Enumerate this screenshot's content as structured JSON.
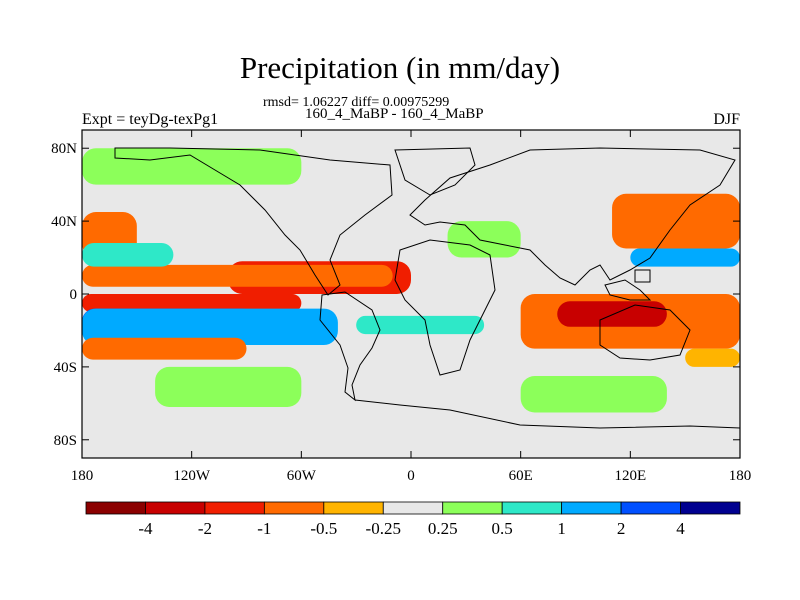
{
  "chart_data": {
    "type": "heatmap",
    "title": "Precipitation (in mm/day)",
    "stats": "rmsd= 1.06227 diff= 0.00975299",
    "experiment": "Expt = teyDg-texPg1",
    "cases": "160_4_MaBP - 160_4_MaBP",
    "season": "DJF",
    "x_ticks": [
      "180",
      "120W",
      "60W",
      "0",
      "60E",
      "120E",
      "180"
    ],
    "x_tick_values": [
      -180,
      -120,
      -60,
      0,
      60,
      120,
      180
    ],
    "y_ticks": [
      "80N",
      "40N",
      "0",
      "40S",
      "80S"
    ],
    "y_tick_values": [
      80,
      40,
      0,
      -40,
      -80
    ],
    "xlim": [
      -180,
      180
    ],
    "ylim": [
      -90,
      90
    ],
    "colorbar": {
      "labels": [
        "-4",
        "-2",
        "-1",
        "-0.5",
        "-0.25",
        "0.25",
        "0.5",
        "1",
        "2",
        "4"
      ],
      "colors": [
        "#8b0000",
        "#c80000",
        "#f01e00",
        "#ff6a00",
        "#ffb400",
        "#e8e8e8",
        "#8cff5a",
        "#2ee8c8",
        "#00aaff",
        "#0050ff",
        "#000090"
      ]
    },
    "regions": [
      {
        "lon": [
          -100,
          0
        ],
        "lat": [
          0,
          18
        ],
        "level": -3
      },
      {
        "lon": [
          -180,
          -10
        ],
        "lat": [
          4,
          16
        ],
        "level": -2
      },
      {
        "lon": [
          -180,
          -60
        ],
        "lat": [
          -10,
          0
        ],
        "level": -3
      },
      {
        "lon": [
          -180,
          -85
        ],
        "lat": [
          -22,
          -8
        ],
        "level": 4
      },
      {
        "lon": [
          -180,
          -40
        ],
        "lat": [
          -28,
          -8
        ],
        "level": 3
      },
      {
        "lon": [
          -180,
          -90
        ],
        "lat": [
          -36,
          -24
        ],
        "level": -2
      },
      {
        "lon": [
          -180,
          -150
        ],
        "lat": [
          20,
          45
        ],
        "level": -2
      },
      {
        "lon": [
          -180,
          -130
        ],
        "lat": [
          15,
          28
        ],
        "level": 2
      },
      {
        "lon": [
          -140,
          -60
        ],
        "lat": [
          -62,
          -40
        ],
        "level": 1
      },
      {
        "lon": [
          60,
          180
        ],
        "lat": [
          -30,
          0
        ],
        "level": -2
      },
      {
        "lon": [
          80,
          140
        ],
        "lat": [
          -18,
          -4
        ],
        "level": -4
      },
      {
        "lon": [
          110,
          180
        ],
        "lat": [
          25,
          55
        ],
        "level": -2
      },
      {
        "lon": [
          120,
          180
        ],
        "lat": [
          15,
          25
        ],
        "level": 3
      },
      {
        "lon": [
          20,
          60
        ],
        "lat": [
          20,
          40
        ],
        "level": 1
      },
      {
        "lon": [
          -30,
          40
        ],
        "lat": [
          -22,
          -12
        ],
        "level": 2
      },
      {
        "lon": [
          60,
          140
        ],
        "lat": [
          -65,
          -45
        ],
        "level": 1
      },
      {
        "lon": [
          -180,
          -60
        ],
        "lat": [
          60,
          80
        ],
        "level": 1
      },
      {
        "lon": [
          150,
          180
        ],
        "lat": [
          -40,
          -30
        ],
        "level": -1
      }
    ]
  }
}
